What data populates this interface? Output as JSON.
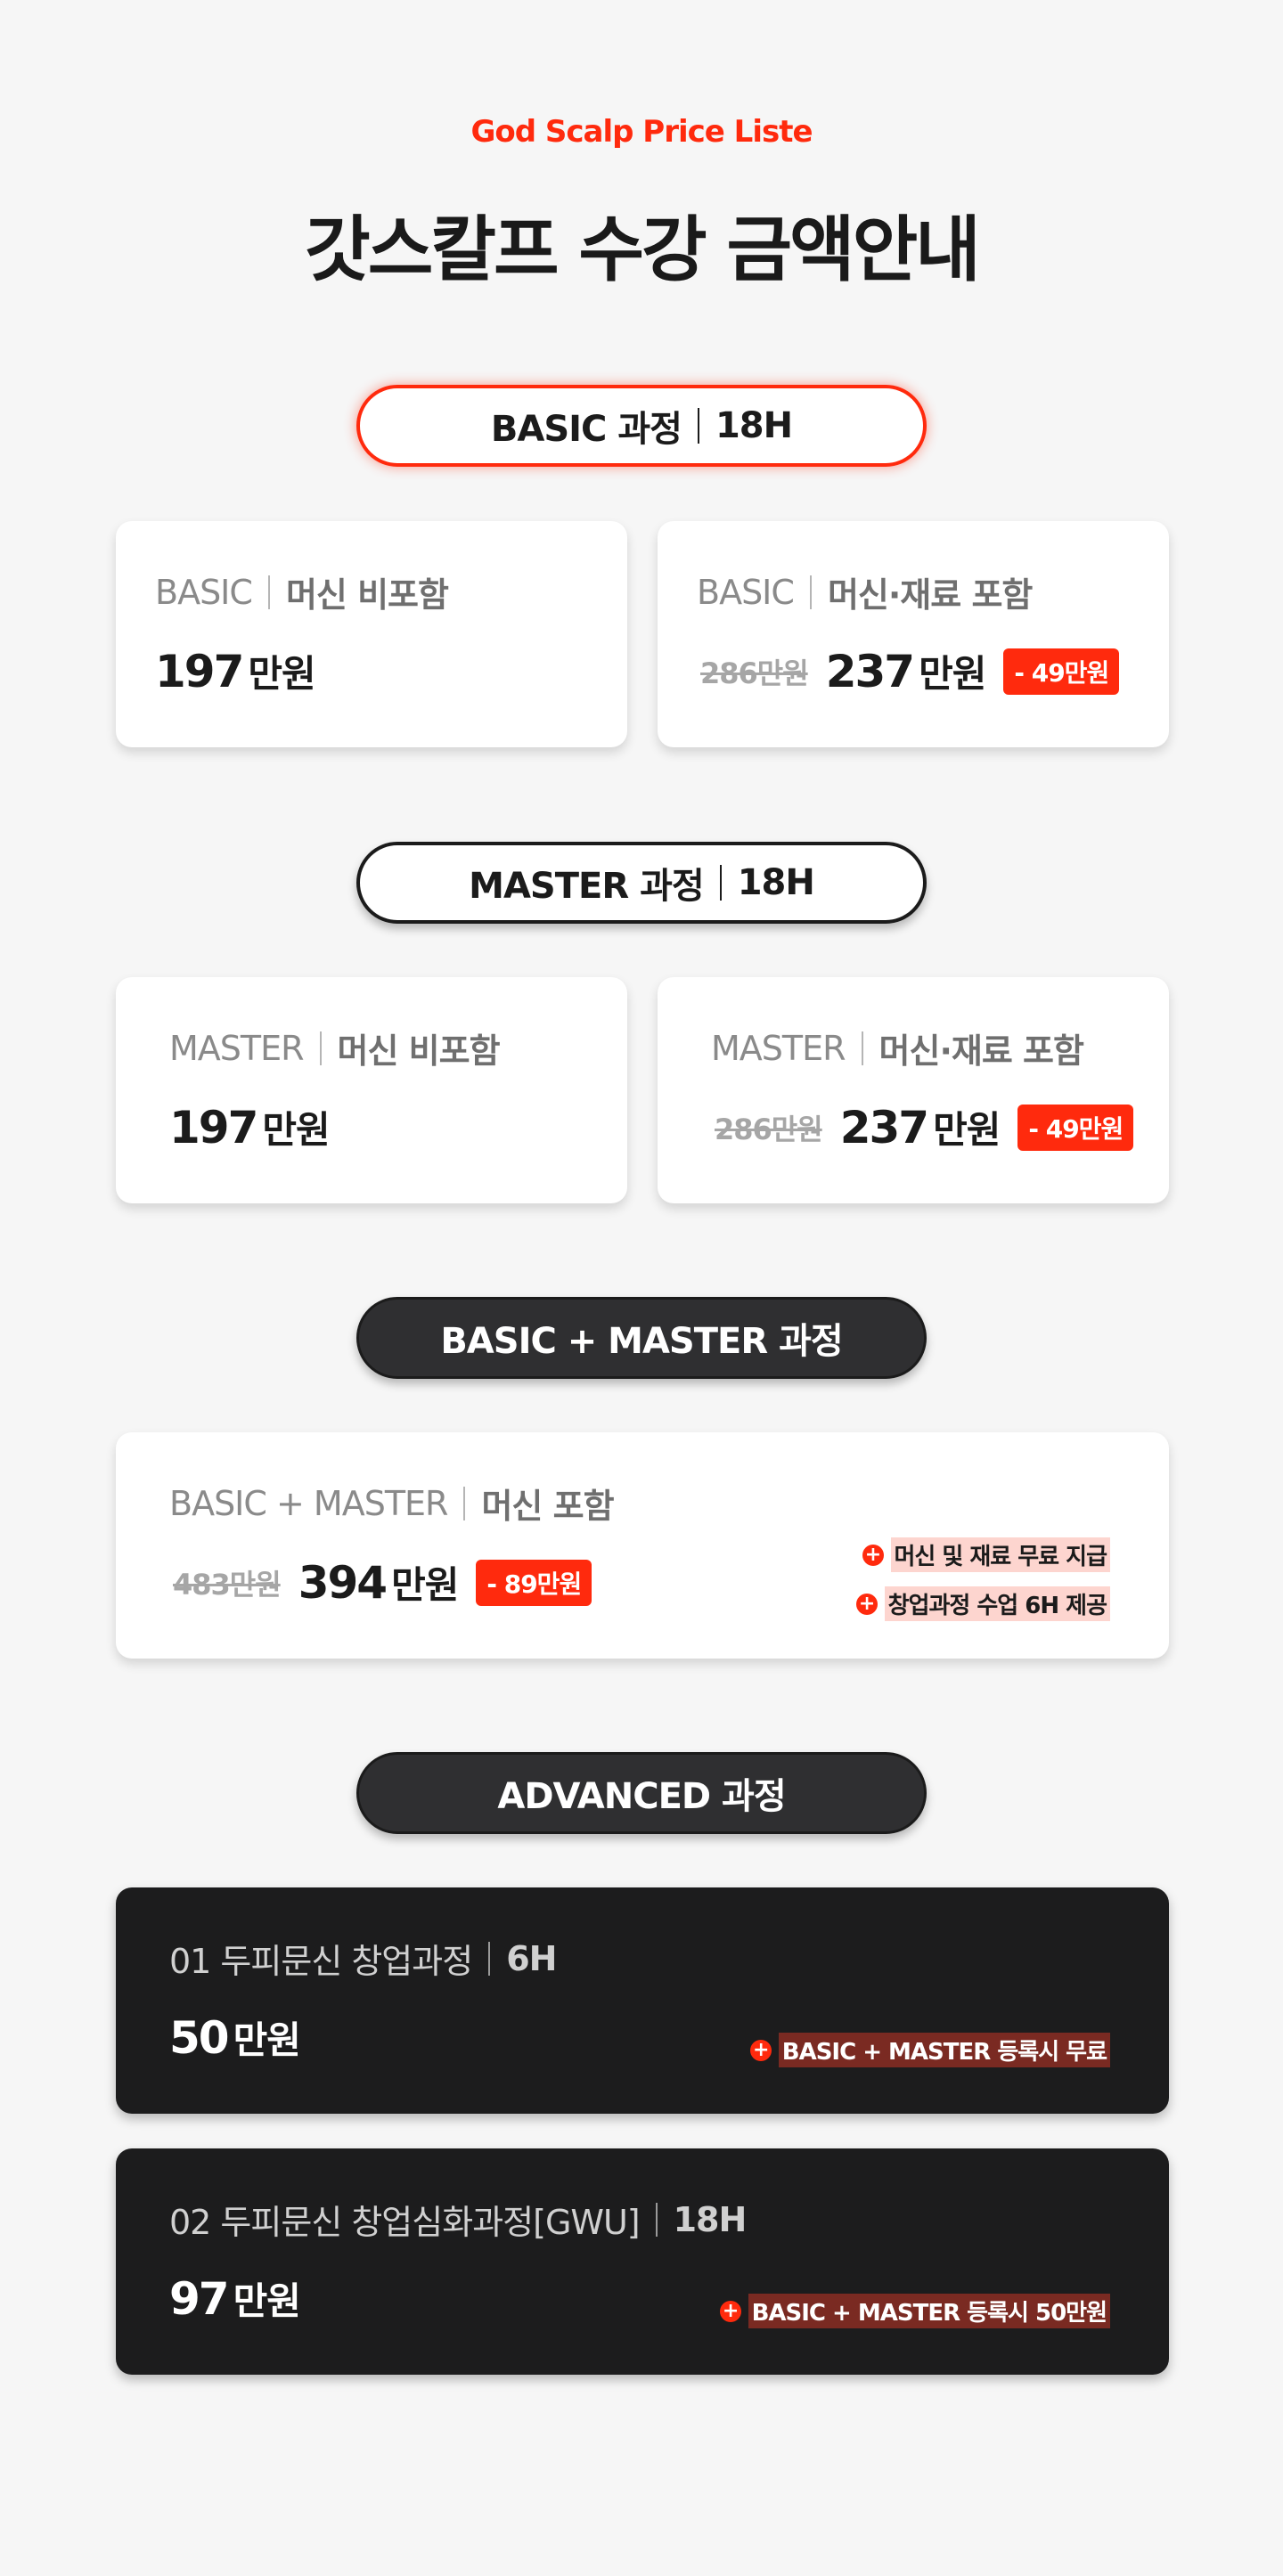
{
  "header": {
    "eyebrow": "God Scalp Price Liste",
    "title": "갓스칼프 수강 금액안내"
  },
  "accent_color": "#ff2a0d",
  "sections": {
    "basic": {
      "pill_name": "BASIC 과정",
      "pill_hours": "18H",
      "card_left": {
        "course": "BASIC",
        "option": "머신 비포함",
        "price": "197",
        "unit": "만원"
      },
      "card_right": {
        "course": "BASIC",
        "option": "머신·재료 포함",
        "old_price": "286만원",
        "price": "237",
        "unit": "만원",
        "discount": "- 49만원"
      }
    },
    "master": {
      "pill_name": "MASTER 과정",
      "pill_hours": "18H",
      "card_left": {
        "course": "MASTER",
        "option": "머신 비포함",
        "price": "197",
        "unit": "만원"
      },
      "card_right": {
        "course": "MASTER",
        "option": "머신·재료 포함",
        "old_price": "286만원",
        "price": "237",
        "unit": "만원",
        "discount": "- 49만원"
      }
    },
    "combo": {
      "pill_name": "BASIC + MASTER 과정",
      "card": {
        "course": "BASIC + MASTER",
        "option": "머신 포함",
        "old_price": "483만원",
        "price": "394",
        "unit": "만원",
        "discount": "- 89만원",
        "perks": [
          "머신 및 재료 무료 지급",
          "창업과정 수업 6H 제공"
        ]
      }
    },
    "advanced": {
      "pill_name": "ADVANCED 과정",
      "cards": [
        {
          "course": "01 두피문신 창업과정",
          "hours": "6H",
          "price": "50",
          "unit": "만원",
          "perk": "BASIC + MASTER 등록시 무료"
        },
        {
          "course": "02 두피문신 창업심화과정[GWU]",
          "hours": "18H",
          "price": "97",
          "unit": "만원",
          "perk": "BASIC + MASTER 등록시 50만원"
        }
      ]
    }
  }
}
